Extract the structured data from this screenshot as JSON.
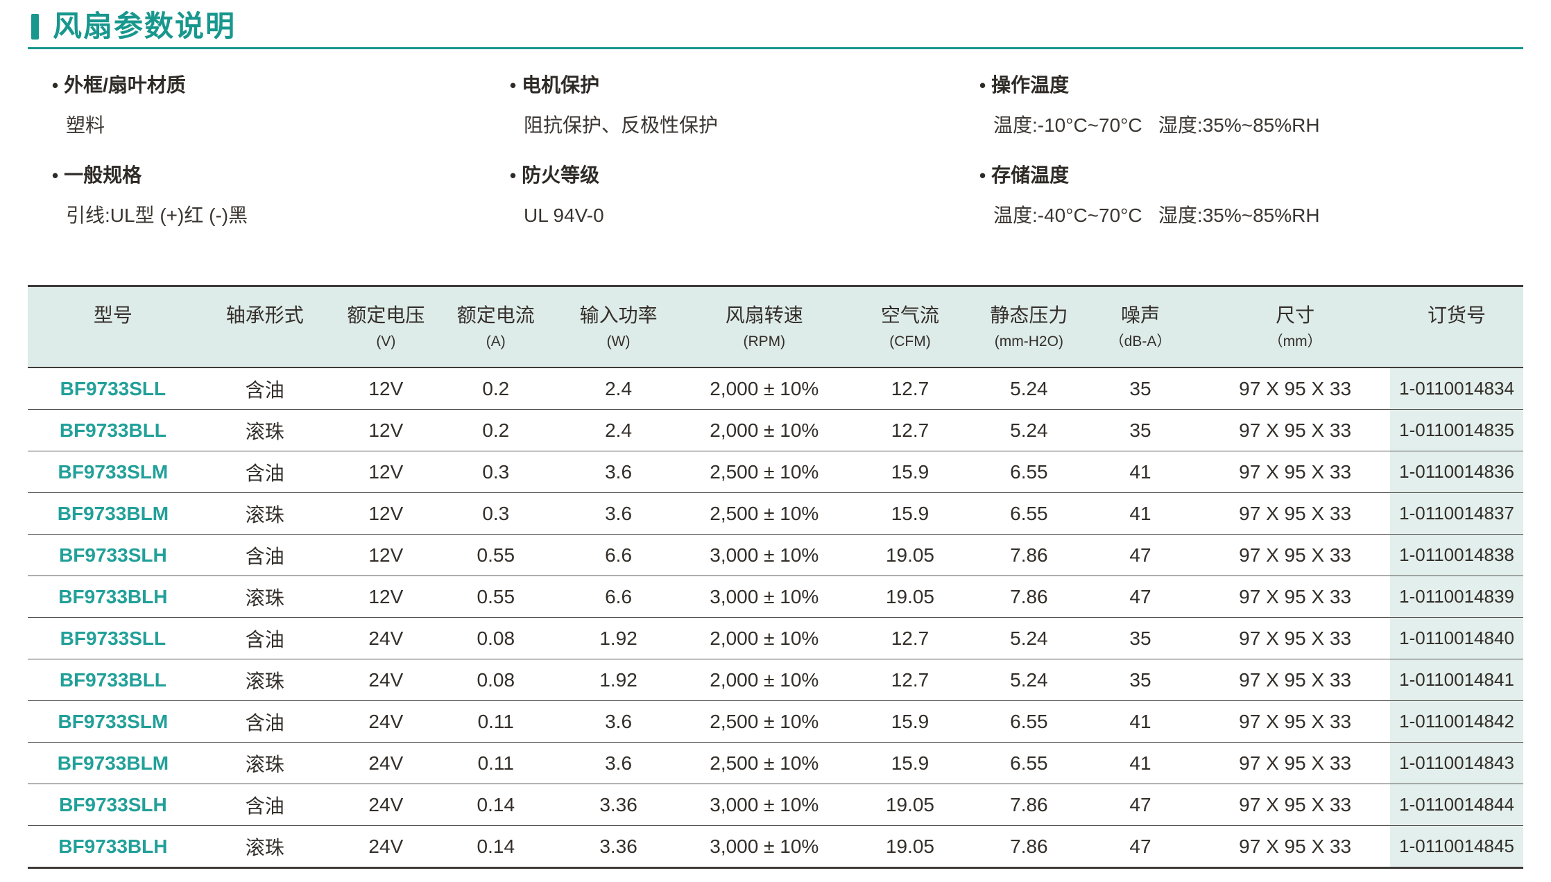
{
  "accent_color": "#18978d",
  "model_color": "#21a099",
  "header": {
    "title": "风扇参数说明"
  },
  "specs": [
    {
      "label": "外框/扇叶材质",
      "value": "塑料"
    },
    {
      "label": "一般规格",
      "value": "引线:UL型 (+)红 (-)黑"
    },
    {
      "label": "电机保护",
      "value": "阻抗保护、反极性保护"
    },
    {
      "label": "防火等级",
      "value": "UL 94V-0"
    },
    {
      "label": "操作温度",
      "value": "温度:-10°C~70°C   湿度:35%~85%RH"
    },
    {
      "label": "存储温度",
      "value": "温度:-40°C~70°C   湿度:35%~85%RH"
    }
  ],
  "table": {
    "columns": [
      {
        "label": "型号",
        "unit": ""
      },
      {
        "label": "轴承形式",
        "unit": ""
      },
      {
        "label": "额定电压",
        "unit": "(V)"
      },
      {
        "label": "额定电流",
        "unit": "(A)"
      },
      {
        "label": "输入功率",
        "unit": "(W)"
      },
      {
        "label": "风扇转速",
        "unit": "(RPM)"
      },
      {
        "label": "空气流",
        "unit": "(CFM)"
      },
      {
        "label": "静态压力",
        "unit": "(mm-H2O)"
      },
      {
        "label": "噪声",
        "unit": "（dB-A）"
      },
      {
        "label": "尺寸",
        "unit": "（mm）"
      },
      {
        "label": "订货号",
        "unit": ""
      }
    ],
    "rows": [
      [
        "BF9733SLL",
        "含油",
        "12V",
        "0.2",
        "2.4",
        "2,000 ± 10%",
        "12.7",
        "5.24",
        "35",
        "97 X 95 X 33",
        "1-0110014834"
      ],
      [
        "BF9733BLL",
        "滚珠",
        "12V",
        "0.2",
        "2.4",
        "2,000 ± 10%",
        "12.7",
        "5.24",
        "35",
        "97 X 95 X 33",
        "1-0110014835"
      ],
      [
        "BF9733SLM",
        "含油",
        "12V",
        "0.3",
        "3.6",
        "2,500 ± 10%",
        "15.9",
        "6.55",
        "41",
        "97 X 95 X 33",
        "1-0110014836"
      ],
      [
        "BF9733BLM",
        "滚珠",
        "12V",
        "0.3",
        "3.6",
        "2,500 ± 10%",
        "15.9",
        "6.55",
        "41",
        "97 X 95 X 33",
        "1-0110014837"
      ],
      [
        "BF9733SLH",
        "含油",
        "12V",
        "0.55",
        "6.6",
        "3,000 ± 10%",
        "19.05",
        "7.86",
        "47",
        "97 X 95 X 33",
        "1-0110014838"
      ],
      [
        "BF9733BLH",
        "滚珠",
        "12V",
        "0.55",
        "6.6",
        "3,000 ± 10%",
        "19.05",
        "7.86",
        "47",
        "97 X 95 X 33",
        "1-0110014839"
      ],
      [
        "BF9733SLL",
        "含油",
        "24V",
        "0.08",
        "1.92",
        "2,000 ± 10%",
        "12.7",
        "5.24",
        "35",
        "97 X 95 X 33",
        "1-0110014840"
      ],
      [
        "BF9733BLL",
        "滚珠",
        "24V",
        "0.08",
        "1.92",
        "2,000 ± 10%",
        "12.7",
        "5.24",
        "35",
        "97 X 95 X 33",
        "1-0110014841"
      ],
      [
        "BF9733SLM",
        "含油",
        "24V",
        "0.11",
        "3.6",
        "2,500 ± 10%",
        "15.9",
        "6.55",
        "41",
        "97 X 95 X 33",
        "1-0110014842"
      ],
      [
        "BF9733BLM",
        "滚珠",
        "24V",
        "0.11",
        "3.6",
        "2,500 ± 10%",
        "15.9",
        "6.55",
        "41",
        "97 X 95 X 33",
        "1-0110014843"
      ],
      [
        "BF9733SLH",
        "含油",
        "24V",
        "0.14",
        "3.36",
        "3,000 ± 10%",
        "19.05",
        "7.86",
        "47",
        "97 X 95 X 33",
        "1-0110014844"
      ],
      [
        "BF9733BLH",
        "滚珠",
        "24V",
        "0.14",
        "3.36",
        "3,000 ± 10%",
        "19.05",
        "7.86",
        "47",
        "97 X 95 X 33",
        "1-0110014845"
      ]
    ]
  }
}
